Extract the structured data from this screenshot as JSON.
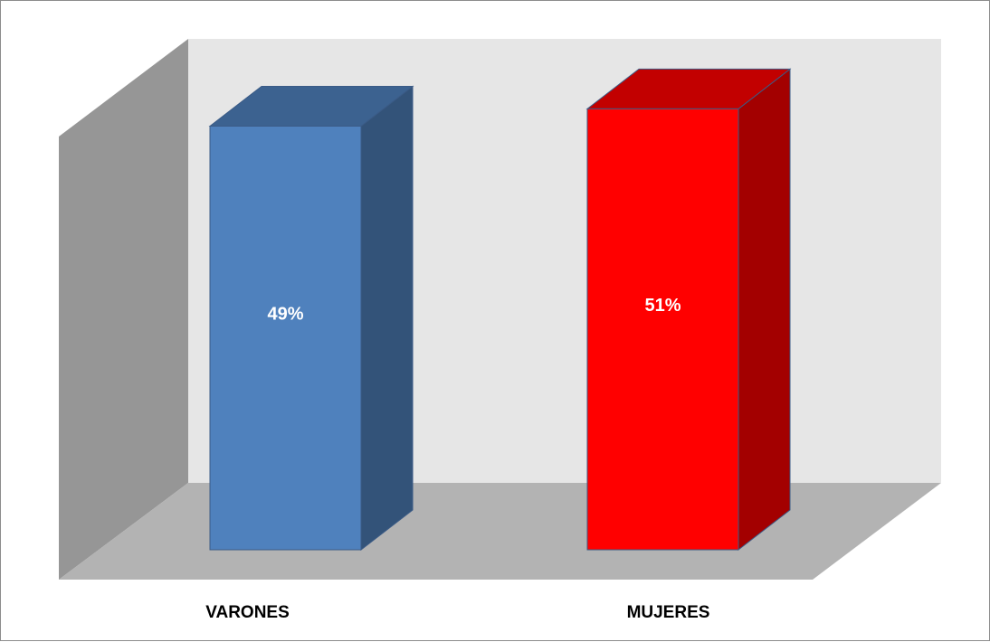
{
  "chart_data": {
    "type": "bar",
    "style": "3d-column",
    "categories": [
      "VARONES",
      "MUJERES"
    ],
    "values": [
      49,
      51
    ],
    "data_labels": [
      "49%",
      "51%"
    ],
    "colors": [
      "#4f81bd",
      "#ff0000"
    ],
    "ylim": [
      0,
      57
    ],
    "grid": false,
    "legend": "none",
    "title": "",
    "xlabel": "",
    "ylabel": ""
  }
}
